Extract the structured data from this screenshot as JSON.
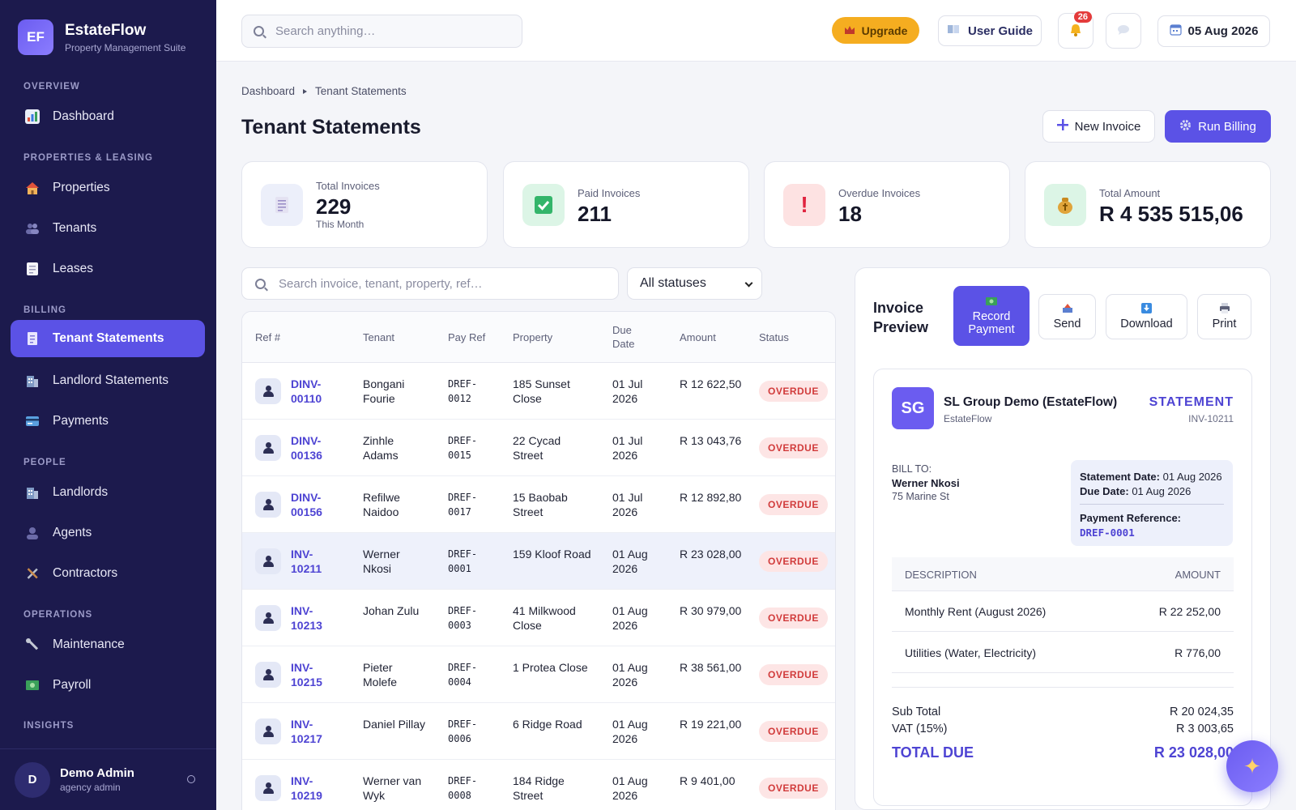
{
  "brand": {
    "logo_text": "EF",
    "name": "EstateFlow",
    "subtitle": "Property Management Suite"
  },
  "sidebar": {
    "sections": [
      {
        "title": "OVERVIEW"
      },
      {
        "title": "PROPERTIES & LEASING"
      },
      {
        "title": "BILLING"
      },
      {
        "title": "PEOPLE"
      },
      {
        "title": "OPERATIONS"
      },
      {
        "title": "INSIGHTS"
      }
    ],
    "items": [
      {
        "label": "Dashboard",
        "icon": "bar-chart-icon"
      },
      {
        "label": "Properties",
        "icon": "house-icon"
      },
      {
        "label": "Tenants",
        "icon": "people-icon"
      },
      {
        "label": "Leases",
        "icon": "document-icon"
      },
      {
        "label": "Tenant Statements",
        "icon": "receipt-icon",
        "active": true
      },
      {
        "label": "Landlord Statements",
        "icon": "building-icon"
      },
      {
        "label": "Payments",
        "icon": "card-icon"
      },
      {
        "label": "Landlords",
        "icon": "building-icon"
      },
      {
        "label": "Agents",
        "icon": "person-icon"
      },
      {
        "label": "Contractors",
        "icon": "tools-icon"
      },
      {
        "label": "Maintenance",
        "icon": "wrench-icon"
      },
      {
        "label": "Payroll",
        "icon": "money-icon"
      }
    ],
    "user": {
      "initial": "D",
      "name": "Demo Admin",
      "role": "agency admin"
    }
  },
  "topbar": {
    "search_placeholder": "Search anything…",
    "upgrade_label": "Upgrade",
    "guide_label": "User Guide",
    "notification_count": "26",
    "date_label": "05 Aug 2026"
  },
  "page": {
    "breadcrumb": [
      "Dashboard",
      "Tenant Statements"
    ],
    "title": "Tenant Statements",
    "new_invoice_label": "New Invoice",
    "run_billing_label": "Run Billing"
  },
  "stats": [
    {
      "label": "Total Invoices",
      "value": "229",
      "sub": "This Month",
      "icon": "receipt-icon"
    },
    {
      "label": "Paid Invoices",
      "value": "211",
      "icon": "check-icon"
    },
    {
      "label": "Overdue Invoices",
      "value": "18",
      "icon": "exclamation-icon"
    },
    {
      "label": "Total Amount",
      "value": "R 4 535 515,06",
      "icon": "money-bag-icon"
    }
  ],
  "filters": {
    "search_placeholder": "Search invoice, tenant, property, ref…",
    "status_selected": "All statuses"
  },
  "table": {
    "headers": {
      "ref": "Ref #",
      "tenant": "Tenant",
      "payref": "Pay Ref",
      "property": "Property",
      "due": "Due Date",
      "amount": "Amount",
      "status": "Status"
    },
    "rows": [
      {
        "ref": "DINV-00110",
        "tenant": "Bongani Fourie",
        "payref": "DREF-0012",
        "property": "185 Sunset Close",
        "due": "01 Jul 2026",
        "amount": "R 12 622,50",
        "status": "OVERDUE"
      },
      {
        "ref": "DINV-00136",
        "tenant": "Zinhle Adams",
        "payref": "DREF-0015",
        "property": "22 Cycad Street",
        "due": "01 Jul 2026",
        "amount": "R 13 043,76",
        "status": "OVERDUE"
      },
      {
        "ref": "DINV-00156",
        "tenant": "Refilwe Naidoo",
        "payref": "DREF-0017",
        "property": "15 Baobab Street",
        "due": "01 Jul 2026",
        "amount": "R 12 892,80",
        "status": "OVERDUE"
      },
      {
        "ref": "INV-10211",
        "tenant": "Werner Nkosi",
        "payref": "DREF-0001",
        "property": "159 Kloof Road",
        "due": "01 Aug 2026",
        "amount": "R 23 028,00",
        "status": "OVERDUE",
        "selected": true
      },
      {
        "ref": "INV-10213",
        "tenant": "Johan Zulu",
        "payref": "DREF-0003",
        "property": "41 Milkwood Close",
        "due": "01 Aug 2026",
        "amount": "R 30 979,00",
        "status": "OVERDUE"
      },
      {
        "ref": "INV-10215",
        "tenant": "Pieter Molefe",
        "payref": "DREF-0004",
        "property": "1 Protea Close",
        "due": "01 Aug 2026",
        "amount": "R 38 561,00",
        "status": "OVERDUE"
      },
      {
        "ref": "INV-10217",
        "tenant": "Daniel Pillay",
        "payref": "DREF-0006",
        "property": "6 Ridge Road",
        "due": "01 Aug 2026",
        "amount": "R 19 221,00",
        "status": "OVERDUE"
      },
      {
        "ref": "INV-10219",
        "tenant": "Werner van Wyk",
        "payref": "DREF-0008",
        "property": "184 Ridge Street",
        "due": "01 Aug 2026",
        "amount": "R 9 401,00",
        "status": "OVERDUE"
      }
    ]
  },
  "preview": {
    "title": "Invoice Preview",
    "actions": {
      "record": "Record Payment",
      "send": "Send",
      "download": "Download",
      "print": "Print"
    },
    "company_logo": "SG",
    "company_name": "SL Group Demo (EstateFlow)",
    "company_sub": "EstateFlow",
    "doc_type": "STATEMENT",
    "doc_number": "INV-10211",
    "bill_to_label": "BILL TO:",
    "bill_to_name": "Werner Nkosi",
    "bill_to_address": "75 Marine St",
    "statement_date_label": "Statement Date:",
    "statement_date": "01 Aug 2026",
    "due_date_label": "Due Date:",
    "due_date": "01 Aug 2026",
    "payment_ref_label": "Payment Reference:",
    "payment_ref": "DREF-0001",
    "line_headers": {
      "description": "DESCRIPTION",
      "amount": "AMOUNT"
    },
    "lines": [
      {
        "description": "Monthly Rent (August 2026)",
        "amount": "R 22 252,00"
      },
      {
        "description": "Utilities (Water, Electricity)",
        "amount": "R 776,00"
      }
    ],
    "subtotal_label": "Sub Total",
    "subtotal": "R 20 024,35",
    "vat_label": "VAT (15%)",
    "vat": "R 3 003,65",
    "total_label": "TOTAL DUE",
    "total": "R 23 028,00"
  }
}
